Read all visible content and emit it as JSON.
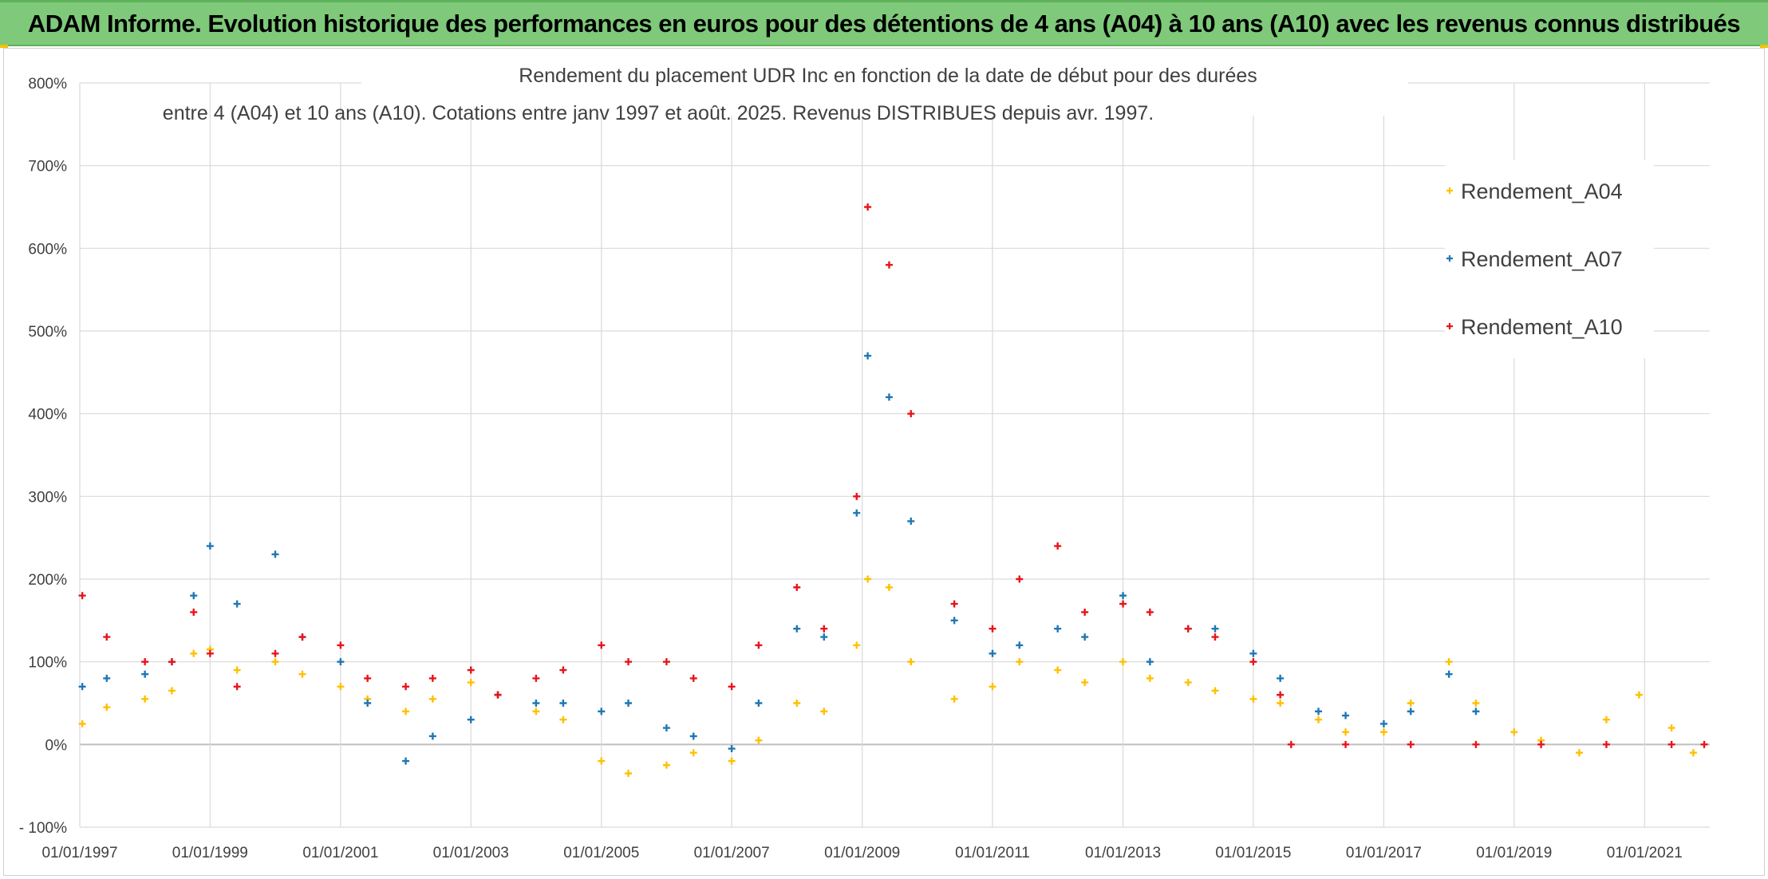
{
  "banner": {
    "title": "ADAM Informe. Evolution historique des performances en euros pour des détentions de 4 ans (A04) à 10 ans (A10) avec les revenus connus distribués"
  },
  "colors": {
    "banner_bg": "#7fc97a",
    "grid": "#d9d9d9",
    "zero_line": "#bfbfbf",
    "text": "#404040"
  },
  "chart_data": {
    "type": "scatter",
    "title_lines": [
      "Rendement du placement UDR Inc en fonction de la date de début pour des durées",
      "entre 4 (A04) et 10 ans (A10). Cotations entre janv 1997 et août. 2025. Revenus DISTRIBUES depuis avr. 1997."
    ],
    "xlabel": "",
    "ylabel": "",
    "x_ticks": [
      "01/01/1997",
      "01/01/1999",
      "01/01/2001",
      "01/01/2003",
      "01/01/2005",
      "01/01/2007",
      "01/01/2009",
      "01/01/2011",
      "01/01/2013",
      "01/01/2015",
      "01/01/2017",
      "01/01/2019",
      "01/01/2021"
    ],
    "x_range": [
      "1997-01-01",
      "2022-01-01"
    ],
    "y_ticks": [
      "- 100%",
      "0%",
      "100%",
      "200%",
      "300%",
      "400%",
      "500%",
      "600%",
      "700%",
      "800%"
    ],
    "y_range": [
      -100,
      800
    ],
    "y_unit": "%",
    "grid": true,
    "legend_position": "top-right",
    "marker": "+",
    "series": [
      {
        "name": "Rendement_A04",
        "color": "#ffc000",
        "points": [
          [
            "1997-01-15",
            25
          ],
          [
            "1997-06-01",
            45
          ],
          [
            "1998-01-01",
            55
          ],
          [
            "1998-06-01",
            65
          ],
          [
            "1998-10-01",
            110
          ],
          [
            "1999-01-01",
            115
          ],
          [
            "1999-06-01",
            90
          ],
          [
            "2000-01-01",
            100
          ],
          [
            "2000-06-01",
            85
          ],
          [
            "2001-01-01",
            70
          ],
          [
            "2001-06-01",
            55
          ],
          [
            "2002-01-01",
            40
          ],
          [
            "2002-06-01",
            55
          ],
          [
            "2003-01-01",
            75
          ],
          [
            "2003-06-01",
            60
          ],
          [
            "2004-01-01",
            40
          ],
          [
            "2004-06-01",
            30
          ],
          [
            "2005-01-01",
            -20
          ],
          [
            "2005-06-01",
            -35
          ],
          [
            "2006-01-01",
            -25
          ],
          [
            "2006-06-01",
            -10
          ],
          [
            "2007-01-01",
            -20
          ],
          [
            "2007-06-01",
            5
          ],
          [
            "2008-01-01",
            50
          ],
          [
            "2008-06-01",
            40
          ],
          [
            "2008-12-01",
            120
          ],
          [
            "2009-02-01",
            200
          ],
          [
            "2009-06-01",
            190
          ],
          [
            "2009-10-01",
            100
          ],
          [
            "2010-06-01",
            55
          ],
          [
            "2011-01-01",
            70
          ],
          [
            "2011-06-01",
            100
          ],
          [
            "2012-01-01",
            90
          ],
          [
            "2012-06-01",
            75
          ],
          [
            "2013-01-01",
            100
          ],
          [
            "2013-06-01",
            80
          ],
          [
            "2014-01-01",
            75
          ],
          [
            "2014-06-01",
            65
          ],
          [
            "2015-01-01",
            55
          ],
          [
            "2015-06-01",
            50
          ],
          [
            "2016-01-01",
            30
          ],
          [
            "2016-06-01",
            15
          ],
          [
            "2017-01-01",
            15
          ],
          [
            "2017-06-01",
            50
          ],
          [
            "2018-01-01",
            100
          ],
          [
            "2018-06-01",
            50
          ],
          [
            "2019-01-01",
            15
          ],
          [
            "2019-06-01",
            5
          ],
          [
            "2020-01-01",
            -10
          ],
          [
            "2020-06-01",
            30
          ],
          [
            "2020-12-01",
            60
          ],
          [
            "2021-06-01",
            20
          ],
          [
            "2021-10-01",
            -10
          ]
        ]
      },
      {
        "name": "Rendement_A07",
        "color": "#1f77b4",
        "points": [
          [
            "1997-01-15",
            70
          ],
          [
            "1997-06-01",
            80
          ],
          [
            "1998-01-01",
            85
          ],
          [
            "1998-06-01",
            100
          ],
          [
            "1998-10-01",
            180
          ],
          [
            "1999-01-01",
            240
          ],
          [
            "1999-06-01",
            170
          ],
          [
            "2000-01-01",
            230
          ],
          [
            "2000-06-01",
            130
          ],
          [
            "2001-01-01",
            100
          ],
          [
            "2001-06-01",
            50
          ],
          [
            "2002-01-01",
            -20
          ],
          [
            "2002-06-01",
            10
          ],
          [
            "2003-01-01",
            30
          ],
          [
            "2003-06-01",
            60
          ],
          [
            "2004-01-01",
            50
          ],
          [
            "2004-06-01",
            50
          ],
          [
            "2005-01-01",
            40
          ],
          [
            "2005-06-01",
            50
          ],
          [
            "2006-01-01",
            20
          ],
          [
            "2006-06-01",
            10
          ],
          [
            "2007-01-01",
            -5
          ],
          [
            "2007-06-01",
            50
          ],
          [
            "2008-01-01",
            140
          ],
          [
            "2008-06-01",
            130
          ],
          [
            "2008-12-01",
            280
          ],
          [
            "2009-02-01",
            470
          ],
          [
            "2009-06-01",
            420
          ],
          [
            "2009-10-01",
            270
          ],
          [
            "2010-06-01",
            150
          ],
          [
            "2011-01-01",
            110
          ],
          [
            "2011-06-01",
            120
          ],
          [
            "2012-01-01",
            140
          ],
          [
            "2012-06-01",
            130
          ],
          [
            "2013-01-01",
            180
          ],
          [
            "2013-06-01",
            100
          ],
          [
            "2014-01-01",
            140
          ],
          [
            "2014-06-01",
            140
          ],
          [
            "2015-01-01",
            110
          ],
          [
            "2015-06-01",
            80
          ],
          [
            "2016-01-01",
            40
          ],
          [
            "2016-06-01",
            35
          ],
          [
            "2017-01-01",
            25
          ],
          [
            "2017-06-01",
            40
          ],
          [
            "2018-01-01",
            85
          ],
          [
            "2018-06-01",
            40
          ]
        ]
      },
      {
        "name": "Rendement_A10",
        "color": "#e8141b",
        "points": [
          [
            "1997-01-15",
            180
          ],
          [
            "1997-06-01",
            130
          ],
          [
            "1998-01-01",
            100
          ],
          [
            "1998-06-01",
            100
          ],
          [
            "1998-10-01",
            160
          ],
          [
            "1999-01-01",
            110
          ],
          [
            "1999-06-01",
            70
          ],
          [
            "2000-01-01",
            110
          ],
          [
            "2000-06-01",
            130
          ],
          [
            "2001-01-01",
            120
          ],
          [
            "2001-06-01",
            80
          ],
          [
            "2002-01-01",
            70
          ],
          [
            "2002-06-01",
            80
          ],
          [
            "2003-01-01",
            90
          ],
          [
            "2003-06-01",
            60
          ],
          [
            "2004-01-01",
            80
          ],
          [
            "2004-06-01",
            90
          ],
          [
            "2005-01-01",
            120
          ],
          [
            "2005-06-01",
            100
          ],
          [
            "2006-01-01",
            100
          ],
          [
            "2006-06-01",
            80
          ],
          [
            "2007-01-01",
            70
          ],
          [
            "2007-06-01",
            120
          ],
          [
            "2008-01-01",
            190
          ],
          [
            "2008-06-01",
            140
          ],
          [
            "2008-12-01",
            300
          ],
          [
            "2009-02-01",
            650
          ],
          [
            "2009-06-01",
            580
          ],
          [
            "2009-10-01",
            400
          ],
          [
            "2010-06-01",
            170
          ],
          [
            "2011-01-01",
            140
          ],
          [
            "2011-06-01",
            200
          ],
          [
            "2012-01-01",
            240
          ],
          [
            "2012-06-01",
            160
          ],
          [
            "2013-01-01",
            170
          ],
          [
            "2013-06-01",
            160
          ],
          [
            "2014-01-01",
            140
          ],
          [
            "2014-06-01",
            130
          ],
          [
            "2015-01-01",
            100
          ],
          [
            "2015-06-01",
            60
          ],
          [
            "2015-08-01",
            0
          ],
          [
            "2016-06-01",
            0
          ],
          [
            "2017-06-01",
            0
          ],
          [
            "2018-06-01",
            0
          ],
          [
            "2019-06-01",
            0
          ],
          [
            "2020-06-01",
            0
          ],
          [
            "2021-06-01",
            0
          ],
          [
            "2021-12-01",
            0
          ]
        ]
      }
    ]
  }
}
